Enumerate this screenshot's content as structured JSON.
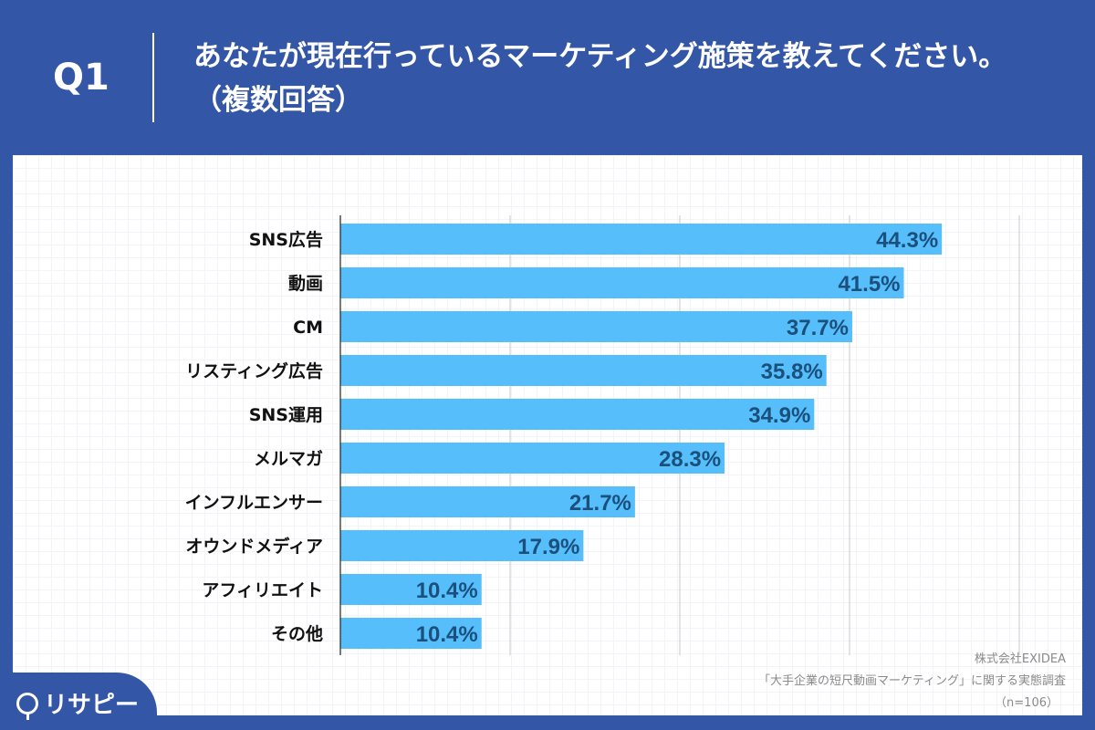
{
  "header": {
    "question_number": "Q1",
    "title": "あなたが現在行っているマーケティング施策を教えてください。（複数回答）"
  },
  "chart_data": {
    "type": "bar",
    "orientation": "horizontal",
    "categories": [
      "SNS広告",
      "動画",
      "CM",
      "リスティング広告",
      "SNS運用",
      "メルマガ",
      "インフルエンサー",
      "オウンドメディア",
      "アフィリエイト",
      "その他"
    ],
    "values": [
      44.3,
      41.5,
      37.7,
      35.8,
      34.9,
      28.3,
      21.7,
      17.9,
      10.4,
      10.4
    ],
    "data_labels": [
      "44.3%",
      "41.5%",
      "37.7%",
      "35.8%",
      "34.9%",
      "28.3%",
      "21.7%",
      "17.9%",
      "10.4%",
      "10.4%"
    ],
    "xlim": [
      0,
      50
    ],
    "grid_step": 12.5,
    "grid": true,
    "unit": "%",
    "bar_color": "#56bffb",
    "label_color": "#1b4f7c"
  },
  "source": {
    "company": "株式会社EXIDEA",
    "survey": "「大手企業の短尺動画マーケティング」に関する実態調査",
    "sample": "（n=106）"
  },
  "logo": {
    "text": "リサピー"
  },
  "colors": {
    "background": "#3356a6",
    "panel": "#ffffff"
  }
}
